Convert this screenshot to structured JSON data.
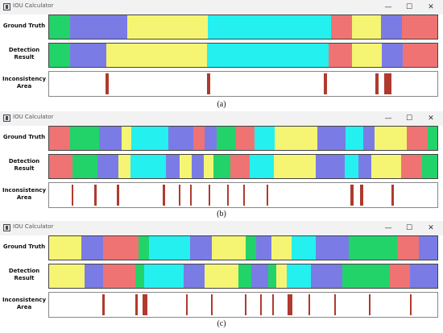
{
  "window": {
    "title": "IOU Calculator",
    "minimize_glyph": "—",
    "maximize_glyph": "☐",
    "close_glyph": "✕"
  },
  "row_labels": {
    "ground_truth": "Ground Truth",
    "detection_line1": "Detection",
    "detection_line2": "Result",
    "inconsistency_line1": "Inconsistency",
    "inconsistency_line2": "Area"
  },
  "palette": {
    "G": "#22d36a",
    "B": "#7b7be6",
    "Y": "#f5f573",
    "C": "#24f0f0",
    "R": "#ef7373",
    "mark": "#b03a2e"
  },
  "panels": [
    {
      "caption": "(a)",
      "ground_truth": [
        [
          "G",
          0.054
        ],
        [
          "B",
          0.147
        ],
        [
          "Y",
          0.208
        ],
        [
          "C",
          0.318
        ],
        [
          "R",
          0.054
        ],
        [
          "Y",
          0.074
        ],
        [
          "B",
          0.054
        ],
        [
          "R",
          0.091
        ]
      ],
      "detection": [
        [
          "G",
          0.054
        ],
        [
          "B",
          0.094
        ],
        [
          "Y",
          0.258
        ],
        [
          "C",
          0.314
        ],
        [
          "R",
          0.06
        ],
        [
          "Y",
          0.076
        ],
        [
          "B",
          0.054
        ],
        [
          "R",
          0.09
        ]
      ],
      "marks": [
        [
          0.146,
          0.008
        ],
        [
          0.407,
          0.008
        ],
        [
          0.707,
          0.008
        ],
        [
          0.84,
          0.008
        ],
        [
          0.864,
          0.018
        ]
      ]
    },
    {
      "caption": "(b)",
      "ground_truth": [
        [
          "R",
          0.052
        ],
        [
          "G",
          0.073
        ],
        [
          "B",
          0.056
        ],
        [
          "Y",
          0.025
        ],
        [
          "C",
          0.092
        ],
        [
          "B",
          0.062
        ],
        [
          "R",
          0.029
        ],
        [
          "B",
          0.03
        ],
        [
          "G",
          0.047
        ],
        [
          "R",
          0.048
        ],
        [
          "C",
          0.049
        ],
        [
          "Y",
          0.107
        ],
        [
          "B",
          0.071
        ],
        [
          "C",
          0.044
        ],
        [
          "B",
          0.028
        ],
        [
          "Y",
          0.081
        ],
        [
          "R",
          0.051
        ],
        [
          "G",
          0.025
        ]
      ],
      "detection": [
        [
          "R",
          0.058
        ],
        [
          "G",
          0.061
        ],
        [
          "B",
          0.053
        ],
        [
          "Y",
          0.03
        ],
        [
          "C",
          0.087
        ],
        [
          "B",
          0.035
        ],
        [
          "Y",
          0.029
        ],
        [
          "B",
          0.03
        ],
        [
          "Y",
          0.025
        ],
        [
          "G",
          0.042
        ],
        [
          "R",
          0.048
        ],
        [
          "C",
          0.06
        ],
        [
          "Y",
          0.104
        ],
        [
          "B",
          0.071
        ],
        [
          "C",
          0.034
        ],
        [
          "B",
          0.033
        ],
        [
          "Y",
          0.074
        ],
        [
          "R",
          0.051
        ],
        [
          "G",
          0.039
        ]
      ],
      "marks": [
        [
          0.058,
          0.005
        ],
        [
          0.117,
          0.005
        ],
        [
          0.175,
          0.005
        ],
        [
          0.293,
          0.005
        ],
        [
          0.333,
          0.005
        ],
        [
          0.363,
          0.005
        ],
        [
          0.41,
          0.005
        ],
        [
          0.458,
          0.005
        ],
        [
          0.5,
          0.005
        ],
        [
          0.56,
          0.005
        ],
        [
          0.775,
          0.009
        ],
        [
          0.8,
          0.009
        ],
        [
          0.882,
          0.005
        ]
      ]
    },
    {
      "caption": "(c)",
      "ground_truth": [
        [
          "Y",
          0.082
        ],
        [
          "B",
          0.054
        ],
        [
          "R",
          0.09
        ],
        [
          "G",
          0.026
        ],
        [
          "C",
          0.103
        ],
        [
          "B",
          0.055
        ],
        [
          "Y",
          0.087
        ],
        [
          "G",
          0.026
        ],
        [
          "B",
          0.038
        ],
        [
          "Y",
          0.051
        ],
        [
          "C",
          0.061
        ],
        [
          "B",
          0.084
        ],
        [
          "G",
          0.121
        ],
        [
          "R",
          0.055
        ],
        [
          "B",
          0.047
        ]
      ],
      "detection": [
        [
          "Y",
          0.091
        ],
        [
          "B",
          0.047
        ],
        [
          "R",
          0.084
        ],
        [
          "G",
          0.022
        ],
        [
          "C",
          0.103
        ],
        [
          "B",
          0.054
        ],
        [
          "Y",
          0.086
        ],
        [
          "G",
          0.034
        ],
        [
          "B",
          0.044
        ],
        [
          "G",
          0.02
        ],
        [
          "Y",
          0.026
        ],
        [
          "C",
          0.063
        ],
        [
          "B",
          0.082
        ],
        [
          "G",
          0.122
        ],
        [
          "R",
          0.051
        ],
        [
          "B",
          0.071
        ]
      ],
      "marks": [
        [
          0.136,
          0.008
        ],
        [
          0.222,
          0.006
        ],
        [
          0.241,
          0.012
        ],
        [
          0.352,
          0.004
        ],
        [
          0.418,
          0.004
        ],
        [
          0.505,
          0.004
        ],
        [
          0.543,
          0.004
        ],
        [
          0.575,
          0.004
        ],
        [
          0.614,
          0.013
        ],
        [
          0.669,
          0.004
        ],
        [
          0.735,
          0.004
        ],
        [
          0.824,
          0.004
        ],
        [
          0.93,
          0.004
        ]
      ]
    }
  ]
}
